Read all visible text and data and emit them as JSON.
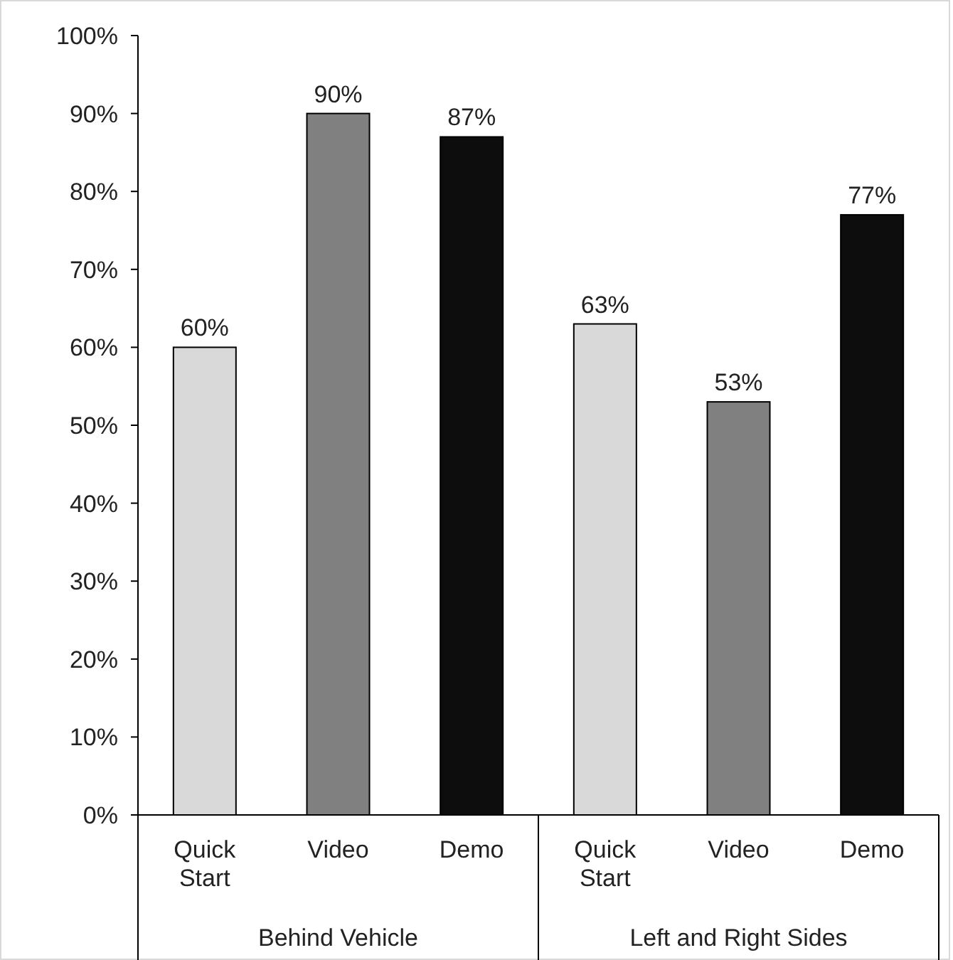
{
  "chart_data": {
    "type": "bar",
    "categories": [
      "Behind Vehicle",
      "Left and Right Sides"
    ],
    "series": [
      {
        "name": "Quick Start",
        "color": "#d9d9d9",
        "values": [
          60,
          63
        ],
        "value_labels": [
          "60%",
          "63%"
        ]
      },
      {
        "name": "Video",
        "color": "#808080",
        "values": [
          90,
          53
        ],
        "value_labels": [
          "90%",
          "53%"
        ]
      },
      {
        "name": "Demo",
        "color": "#0d0d0d",
        "values": [
          87,
          77
        ],
        "value_labels": [
          "87%",
          "77%"
        ]
      }
    ],
    "ylim": [
      0,
      100
    ],
    "yticks": [
      {
        "value": 0,
        "label": "0%"
      },
      {
        "value": 10,
        "label": "10%"
      },
      {
        "value": 20,
        "label": "20%"
      },
      {
        "value": 30,
        "label": "30%"
      },
      {
        "value": 40,
        "label": "40%"
      },
      {
        "value": 50,
        "label": "50%"
      },
      {
        "value": 60,
        "label": "60%"
      },
      {
        "value": 70,
        "label": "70%"
      },
      {
        "value": 80,
        "label": "80%"
      },
      {
        "value": 90,
        "label": "90%"
      },
      {
        "value": 100,
        "label": "100%"
      }
    ],
    "grid": false
  }
}
